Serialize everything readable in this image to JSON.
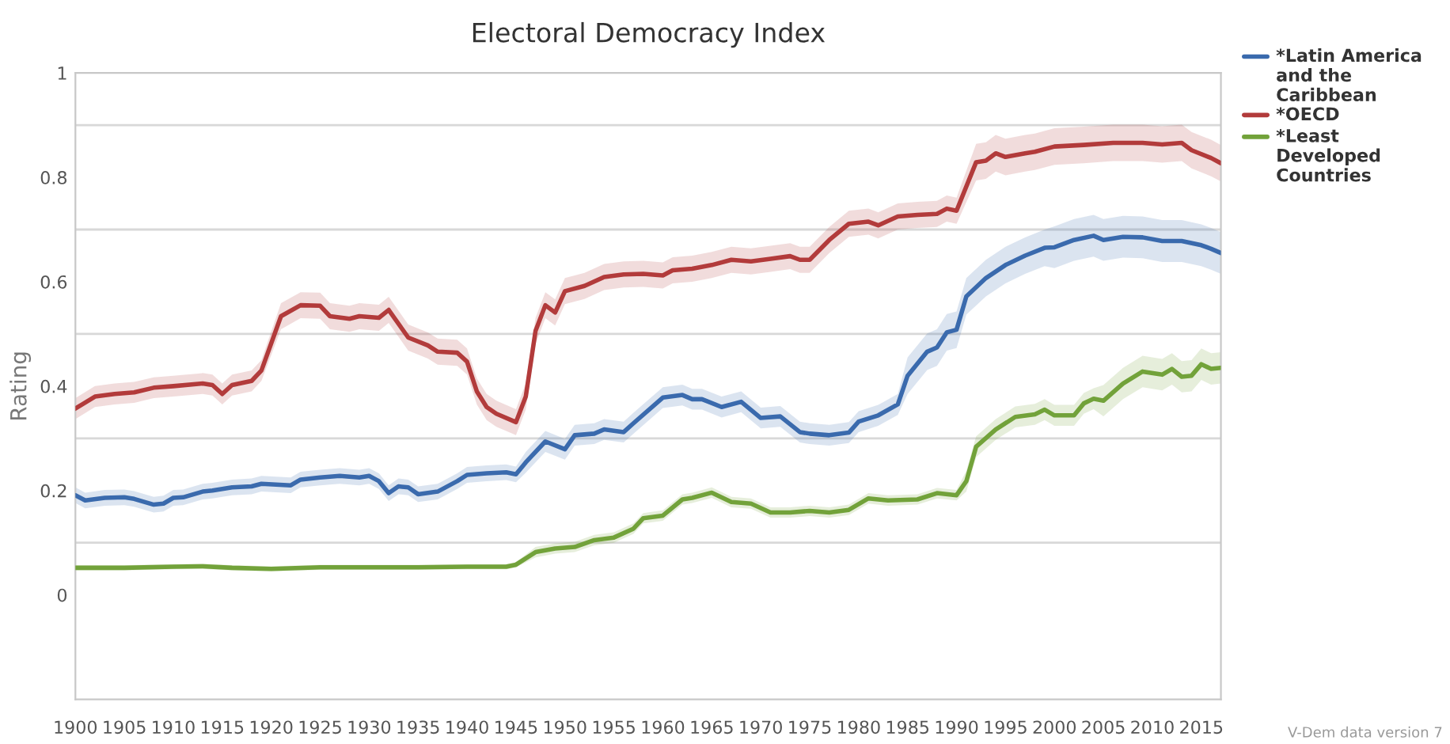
{
  "chart_data": {
    "type": "line",
    "title": "Electoral Democracy Index",
    "ylabel": "Rating",
    "xlim": [
      1900,
      2017
    ],
    "xticks": [
      1900,
      1905,
      1910,
      1915,
      1920,
      1925,
      1930,
      1935,
      1940,
      1945,
      1950,
      1955,
      1960,
      1965,
      1970,
      1975,
      1980,
      1985,
      1990,
      1995,
      2000,
      2005,
      2010,
      2015
    ],
    "ylim": [
      -0.2,
      1
    ],
    "yticks": [
      0,
      {
        "value": 0.1,
        "label": null
      },
      0.2,
      {
        "value": 0.3,
        "label": null
      },
      0.4,
      {
        "value": 0.5,
        "label": null
      },
      0.6,
      {
        "value": 0.7,
        "label": null
      },
      0.8,
      {
        "value": 0.9,
        "label": null
      },
      1
    ],
    "grid": "y",
    "legend": "top right",
    "annotations": [
      "V-Dem data version 7"
    ],
    "series": [
      {
        "name": "*Latin America and the Caribbean",
        "color": "#3a6aad",
        "x": [
          1900,
          1901,
          1903,
          1905,
          1906,
          1908,
          1909,
          1910,
          1911,
          1913,
          1914,
          1916,
          1918,
          1919,
          1922,
          1923,
          1925,
          1927,
          1929,
          1930,
          1931,
          1932,
          1933,
          1934,
          1935,
          1937,
          1939,
          1940,
          1942,
          1944,
          1945,
          1946,
          1948,
          1950,
          1951,
          1953,
          1954,
          1956,
          1957,
          1960,
          1962,
          1963,
          1964,
          1966,
          1968,
          1970,
          1972,
          1974,
          1975,
          1977,
          1979,
          1980,
          1982,
          1984,
          1985,
          1987,
          1988,
          1989,
          1990,
          1991,
          1993,
          1995,
          1997,
          1999,
          2000,
          2002,
          2004,
          2005,
          2007,
          2009,
          2011,
          2013,
          2015,
          2016,
          2017
        ],
        "values": [
          0.191,
          0.181,
          0.186,
          0.187,
          0.184,
          0.173,
          0.175,
          0.186,
          0.187,
          0.198,
          0.2,
          0.206,
          0.208,
          0.213,
          0.21,
          0.221,
          0.225,
          0.228,
          0.225,
          0.228,
          0.218,
          0.195,
          0.208,
          0.206,
          0.193,
          0.198,
          0.218,
          0.23,
          0.233,
          0.235,
          0.231,
          0.254,
          0.294,
          0.279,
          0.306,
          0.309,
          0.317,
          0.312,
          0.329,
          0.378,
          0.383,
          0.375,
          0.375,
          0.36,
          0.37,
          0.339,
          0.342,
          0.312,
          0.309,
          0.306,
          0.311,
          0.332,
          0.344,
          0.365,
          0.42,
          0.466,
          0.474,
          0.503,
          0.508,
          0.572,
          0.607,
          0.632,
          0.65,
          0.665,
          0.666,
          0.68,
          0.688,
          0.68,
          0.686,
          0.685,
          0.678,
          0.678,
          0.67,
          0.663,
          0.655
        ],
        "lower": [
          0.176,
          0.166,
          0.171,
          0.172,
          0.169,
          0.158,
          0.16,
          0.171,
          0.172,
          0.183,
          0.185,
          0.191,
          0.193,
          0.198,
          0.195,
          0.206,
          0.21,
          0.213,
          0.21,
          0.213,
          0.203,
          0.18,
          0.193,
          0.191,
          0.178,
          0.183,
          0.203,
          0.215,
          0.218,
          0.22,
          0.216,
          0.234,
          0.274,
          0.259,
          0.286,
          0.289,
          0.297,
          0.292,
          0.309,
          0.358,
          0.363,
          0.355,
          0.355,
          0.34,
          0.35,
          0.319,
          0.322,
          0.292,
          0.289,
          0.286,
          0.291,
          0.312,
          0.324,
          0.345,
          0.385,
          0.431,
          0.439,
          0.468,
          0.473,
          0.537,
          0.572,
          0.597,
          0.615,
          0.63,
          0.626,
          0.64,
          0.648,
          0.64,
          0.646,
          0.645,
          0.638,
          0.638,
          0.63,
          0.623,
          0.615
        ],
        "upper": [
          0.206,
          0.196,
          0.201,
          0.202,
          0.199,
          0.188,
          0.19,
          0.201,
          0.202,
          0.213,
          0.215,
          0.221,
          0.223,
          0.228,
          0.225,
          0.236,
          0.24,
          0.243,
          0.24,
          0.243,
          0.233,
          0.21,
          0.223,
          0.221,
          0.208,
          0.213,
          0.233,
          0.245,
          0.248,
          0.25,
          0.246,
          0.274,
          0.314,
          0.299,
          0.326,
          0.329,
          0.337,
          0.332,
          0.349,
          0.398,
          0.403,
          0.395,
          0.395,
          0.38,
          0.39,
          0.359,
          0.362,
          0.332,
          0.329,
          0.326,
          0.331,
          0.352,
          0.364,
          0.385,
          0.455,
          0.501,
          0.509,
          0.538,
          0.543,
          0.607,
          0.642,
          0.667,
          0.685,
          0.7,
          0.706,
          0.72,
          0.728,
          0.72,
          0.726,
          0.725,
          0.718,
          0.718,
          0.71,
          0.703,
          0.695
        ]
      },
      {
        "name": "*OECD",
        "color": "#b23b3b",
        "x": [
          1900,
          1902,
          1904,
          1906,
          1908,
          1910,
          1913,
          1914,
          1915,
          1916,
          1918,
          1919,
          1921,
          1923,
          1925,
          1926,
          1928,
          1929,
          1931,
          1932,
          1934,
          1936,
          1937,
          1939,
          1940,
          1941,
          1942,
          1943,
          1945,
          1946,
          1947,
          1948,
          1949,
          1950,
          1952,
          1954,
          1956,
          1958,
          1960,
          1961,
          1963,
          1965,
          1967,
          1969,
          1971,
          1973,
          1974,
          1975,
          1977,
          1979,
          1981,
          1982,
          1984,
          1986,
          1988,
          1989,
          1990,
          1992,
          1993,
          1994,
          1995,
          1997,
          1998,
          2000,
          2003,
          2006,
          2009,
          2011,
          2013,
          2014,
          2016,
          2017
        ],
        "values": [
          0.357,
          0.38,
          0.385,
          0.388,
          0.397,
          0.4,
          0.405,
          0.402,
          0.385,
          0.402,
          0.41,
          0.43,
          0.534,
          0.555,
          0.554,
          0.534,
          0.529,
          0.534,
          0.531,
          0.546,
          0.493,
          0.478,
          0.466,
          0.464,
          0.447,
          0.39,
          0.36,
          0.347,
          0.331,
          0.38,
          0.506,
          0.555,
          0.541,
          0.582,
          0.592,
          0.609,
          0.614,
          0.615,
          0.612,
          0.622,
          0.625,
          0.632,
          0.642,
          0.639,
          0.644,
          0.649,
          0.642,
          0.642,
          0.68,
          0.711,
          0.715,
          0.708,
          0.725,
          0.728,
          0.73,
          0.74,
          0.736,
          0.829,
          0.832,
          0.846,
          0.839,
          0.846,
          0.849,
          0.859,
          0.862,
          0.866,
          0.866,
          0.863,
          0.866,
          0.852,
          0.837,
          0.827
        ],
        "lower": [
          0.337,
          0.36,
          0.365,
          0.368,
          0.377,
          0.38,
          0.385,
          0.382,
          0.365,
          0.382,
          0.39,
          0.41,
          0.509,
          0.53,
          0.529,
          0.509,
          0.504,
          0.509,
          0.506,
          0.521,
          0.468,
          0.453,
          0.441,
          0.439,
          0.422,
          0.365,
          0.335,
          0.322,
          0.306,
          0.355,
          0.481,
          0.53,
          0.516,
          0.557,
          0.567,
          0.584,
          0.589,
          0.59,
          0.587,
          0.597,
          0.6,
          0.607,
          0.617,
          0.614,
          0.619,
          0.624,
          0.617,
          0.617,
          0.655,
          0.686,
          0.69,
          0.683,
          0.7,
          0.703,
          0.705,
          0.715,
          0.711,
          0.794,
          0.797,
          0.811,
          0.804,
          0.811,
          0.814,
          0.824,
          0.827,
          0.831,
          0.831,
          0.828,
          0.831,
          0.817,
          0.802,
          0.792
        ],
        "upper": [
          0.377,
          0.4,
          0.405,
          0.408,
          0.417,
          0.42,
          0.425,
          0.422,
          0.405,
          0.422,
          0.43,
          0.45,
          0.559,
          0.58,
          0.579,
          0.559,
          0.554,
          0.559,
          0.556,
          0.571,
          0.518,
          0.503,
          0.491,
          0.489,
          0.472,
          0.415,
          0.385,
          0.372,
          0.356,
          0.405,
          0.531,
          0.58,
          0.566,
          0.607,
          0.617,
          0.634,
          0.639,
          0.64,
          0.637,
          0.647,
          0.65,
          0.657,
          0.667,
          0.664,
          0.669,
          0.674,
          0.667,
          0.667,
          0.705,
          0.736,
          0.74,
          0.733,
          0.75,
          0.753,
          0.755,
          0.765,
          0.761,
          0.864,
          0.867,
          0.881,
          0.874,
          0.881,
          0.884,
          0.894,
          0.897,
          0.901,
          0.901,
          0.898,
          0.901,
          0.887,
          0.872,
          0.862
        ]
      },
      {
        "name": "*Least Developed Countries",
        "color": "#72a23a",
        "x": [
          1900,
          1905,
          1910,
          1913,
          1916,
          1920,
          1925,
          1930,
          1935,
          1940,
          1944,
          1945,
          1947,
          1949,
          1951,
          1953,
          1955,
          1957,
          1958,
          1960,
          1962,
          1963,
          1965,
          1967,
          1969,
          1971,
          1973,
          1975,
          1977,
          1979,
          1981,
          1983,
          1986,
          1988,
          1990,
          1991,
          1992,
          1994,
          1996,
          1998,
          1999,
          2000,
          2002,
          2003,
          2004,
          2005,
          2007,
          2009,
          2011,
          2012,
          2013,
          2014,
          2015,
          2016,
          2017
        ],
        "values": [
          0.052,
          0.052,
          0.054,
          0.055,
          0.052,
          0.05,
          0.053,
          0.053,
          0.053,
          0.054,
          0.054,
          0.058,
          0.082,
          0.089,
          0.092,
          0.105,
          0.11,
          0.127,
          0.147,
          0.152,
          0.183,
          0.186,
          0.196,
          0.178,
          0.175,
          0.158,
          0.158,
          0.161,
          0.158,
          0.163,
          0.185,
          0.181,
          0.183,
          0.195,
          0.191,
          0.218,
          0.284,
          0.317,
          0.341,
          0.346,
          0.355,
          0.344,
          0.344,
          0.367,
          0.376,
          0.372,
          0.405,
          0.428,
          0.422,
          0.433,
          0.418,
          0.42,
          0.442,
          0.433,
          0.435
        ],
        "lower": [
          0.047,
          0.047,
          0.049,
          0.05,
          0.047,
          0.045,
          0.048,
          0.048,
          0.048,
          0.049,
          0.049,
          0.053,
          0.072,
          0.079,
          0.082,
          0.095,
          0.1,
          0.117,
          0.137,
          0.142,
          0.173,
          0.176,
          0.186,
          0.168,
          0.165,
          0.148,
          0.148,
          0.151,
          0.148,
          0.153,
          0.175,
          0.171,
          0.173,
          0.185,
          0.181,
          0.198,
          0.264,
          0.297,
          0.321,
          0.326,
          0.335,
          0.324,
          0.324,
          0.347,
          0.356,
          0.342,
          0.375,
          0.398,
          0.392,
          0.403,
          0.388,
          0.39,
          0.412,
          0.403,
          0.405
        ],
        "upper": [
          0.057,
          0.057,
          0.059,
          0.06,
          0.057,
          0.055,
          0.058,
          0.058,
          0.058,
          0.059,
          0.059,
          0.063,
          0.092,
          0.099,
          0.102,
          0.115,
          0.12,
          0.137,
          0.157,
          0.162,
          0.193,
          0.196,
          0.206,
          0.188,
          0.185,
          0.168,
          0.168,
          0.171,
          0.168,
          0.173,
          0.195,
          0.191,
          0.193,
          0.205,
          0.201,
          0.238,
          0.304,
          0.337,
          0.361,
          0.366,
          0.375,
          0.364,
          0.364,
          0.387,
          0.396,
          0.402,
          0.435,
          0.458,
          0.452,
          0.463,
          0.448,
          0.45,
          0.472,
          0.463,
          0.465
        ]
      }
    ]
  }
}
